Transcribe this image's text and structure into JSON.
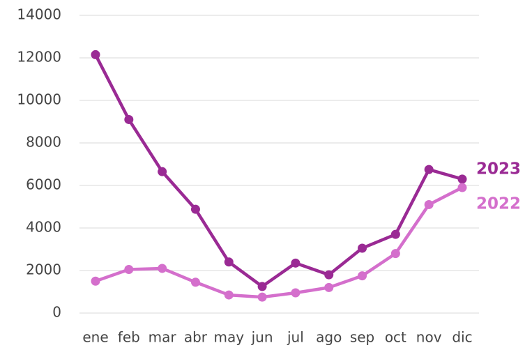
{
  "chart_data": {
    "type": "line",
    "categories": [
      "ene",
      "feb",
      "mar",
      "abr",
      "may",
      "jun",
      "jul",
      "ago",
      "sep",
      "oct",
      "nov",
      "dic"
    ],
    "series": [
      {
        "name": "2023",
        "color": "#9a2a94",
        "values": [
          12150,
          9100,
          6650,
          4880,
          2400,
          1250,
          2350,
          1800,
          3050,
          3700,
          6750,
          6300
        ]
      },
      {
        "name": "2022",
        "color": "#d46fcc",
        "values": [
          1500,
          2050,
          2100,
          1450,
          850,
          750,
          950,
          1200,
          1750,
          2800,
          5100,
          5900
        ]
      }
    ],
    "ylim": [
      0,
      14000
    ],
    "yticks": [
      0,
      2000,
      4000,
      6000,
      8000,
      10000,
      12000,
      14000
    ],
    "grid": true
  }
}
